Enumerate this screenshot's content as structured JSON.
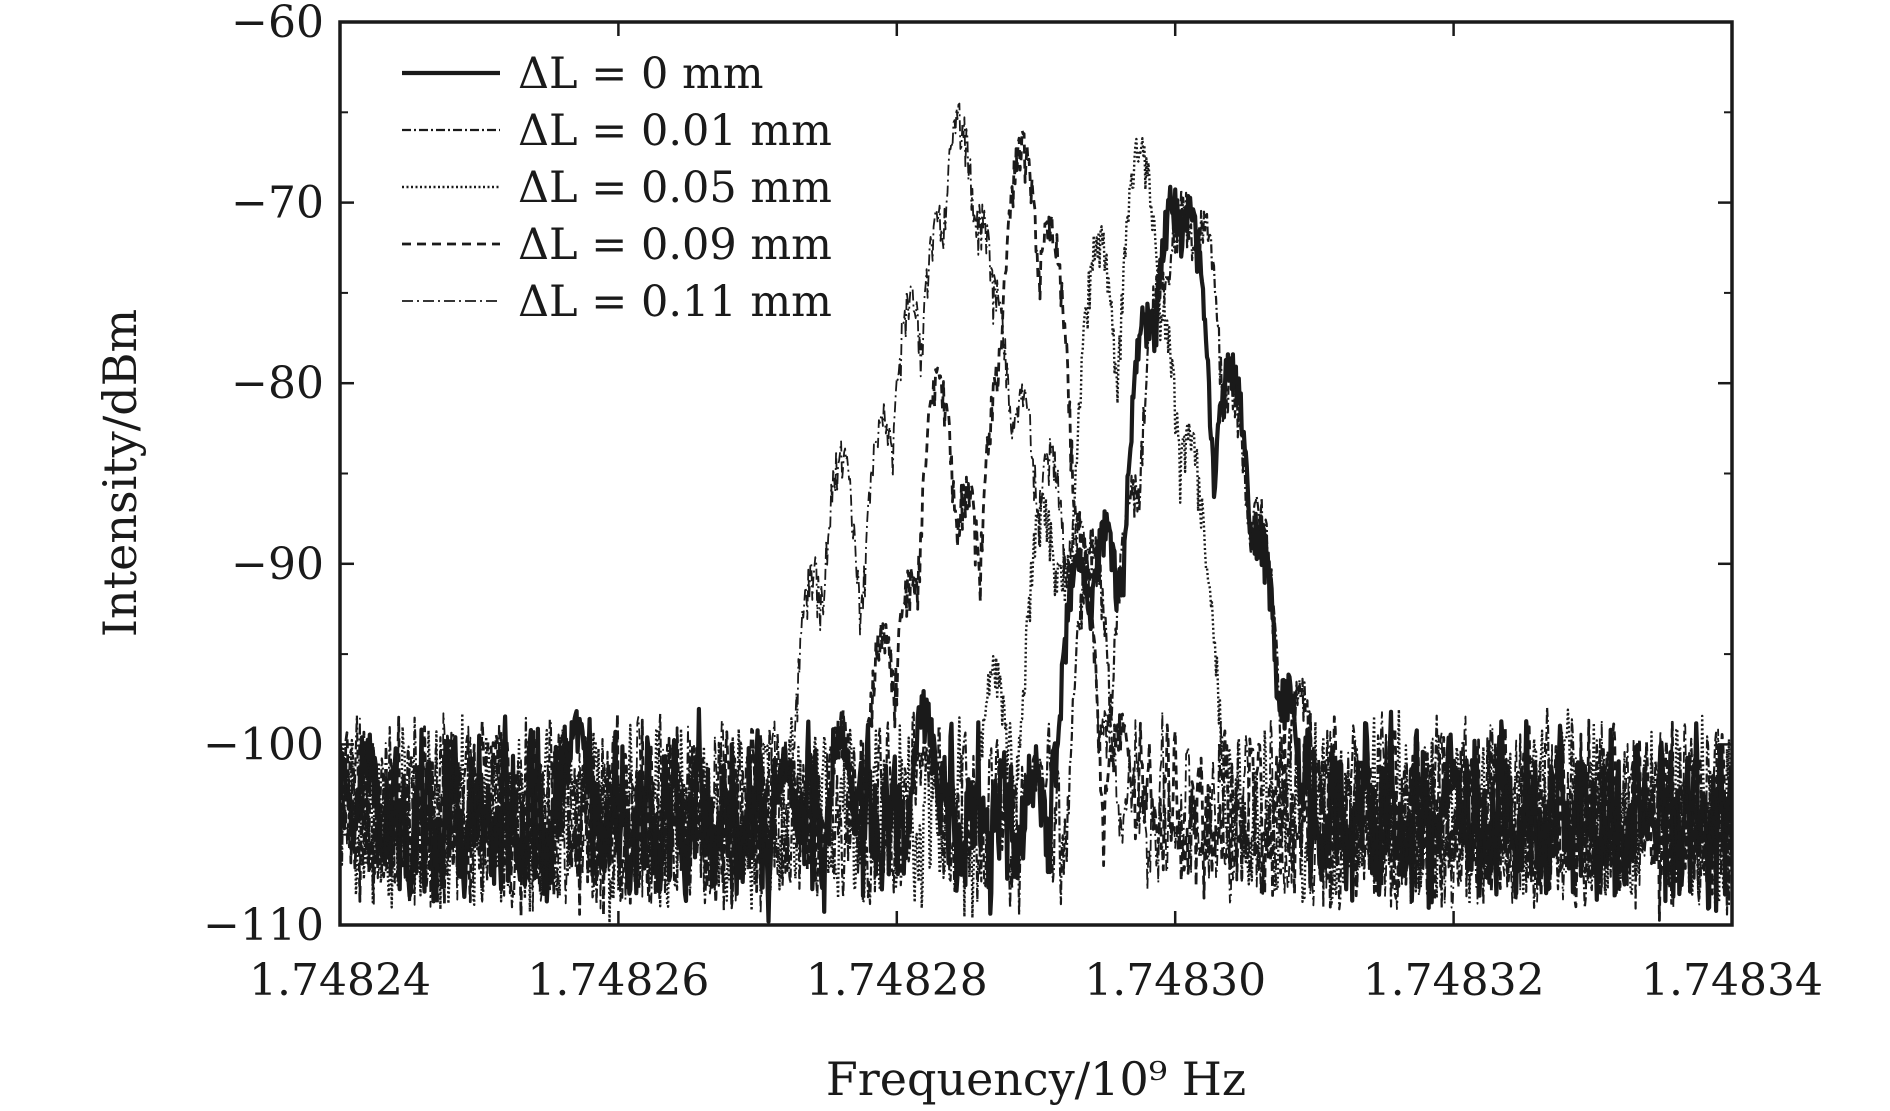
{
  "chart_data": {
    "type": "line",
    "xlabel": "Frequency/10⁹ Hz",
    "ylabel": "Intensity/dBm",
    "xlim": [
      1.74824,
      1.74834
    ],
    "ylim": [
      -110,
      -60
    ],
    "xticks": [
      1.74824,
      1.74826,
      1.74828,
      1.7483,
      1.74832,
      1.74834
    ],
    "xtick_labels": [
      "1.74824",
      "1.74826",
      "1.74828",
      "1.74830",
      "1.74832",
      "1.74834"
    ],
    "yticks": [
      -110,
      -100,
      -90,
      -80,
      -70,
      -60
    ],
    "ytick_labels": [
      "−110",
      "−100",
      "−90",
      "−80",
      "−70",
      "−60"
    ],
    "grid": false,
    "legend_position": "top-left",
    "noise_floor": [
      -110,
      -98
    ],
    "series": [
      {
        "name": "ΔL = 0 mm",
        "style": "solid-bold",
        "peaks": [
          {
            "x": 1.74824,
            "y": -100
          },
          {
            "x": 1.748242,
            "y": -99.5
          },
          {
            "x": 1.748257,
            "y": -98
          },
          {
            "x": 1.748272,
            "y": -100
          },
          {
            "x": 1.748276,
            "y": -99
          },
          {
            "x": 1.748282,
            "y": -97
          },
          {
            "x": 1.74829,
            "y": -101
          },
          {
            "x": 1.748293,
            "y": -89
          },
          {
            "x": 1.748295,
            "y": -87
          },
          {
            "x": 1.748296,
            "y": -90
          },
          {
            "x": 1.748298,
            "y": -75
          },
          {
            "x": 1.7482998,
            "y": -69
          },
          {
            "x": 1.748301,
            "y": -69.5
          },
          {
            "x": 1.748304,
            "y": -78
          },
          {
            "x": 1.748306,
            "y": -87
          },
          {
            "x": 1.748308,
            "y": -96
          },
          {
            "x": 1.74832,
            "y": -101
          },
          {
            "x": 1.748334,
            "y": -103
          }
        ]
      },
      {
        "name": "ΔL = 0.01 mm",
        "style": "dash-dot-fine",
        "peaks": [
          {
            "x": 1.748241,
            "y": -100
          },
          {
            "x": 1.748248,
            "y": -99
          },
          {
            "x": 1.748256,
            "y": -99
          },
          {
            "x": 1.74827,
            "y": -100
          },
          {
            "x": 1.748282,
            "y": -99
          },
          {
            "x": 1.74829,
            "y": -100
          },
          {
            "x": 1.748294,
            "y": -88
          },
          {
            "x": 1.748297,
            "y": -85
          },
          {
            "x": 1.748299,
            "y": -73
          },
          {
            "x": 1.7483005,
            "y": -69
          },
          {
            "x": 1.748302,
            "y": -70
          },
          {
            "x": 1.748304,
            "y": -79
          },
          {
            "x": 1.748306,
            "y": -86
          },
          {
            "x": 1.748309,
            "y": -96
          },
          {
            "x": 1.748318,
            "y": -100
          },
          {
            "x": 1.748334,
            "y": -102
          }
        ]
      },
      {
        "name": "ΔL = 0.05 mm",
        "style": "dotted",
        "peaks": [
          {
            "x": 1.74824,
            "y": -100
          },
          {
            "x": 1.748258,
            "y": -99
          },
          {
            "x": 1.748266,
            "y": -100
          },
          {
            "x": 1.748274,
            "y": -100
          },
          {
            "x": 1.748284,
            "y": -103
          },
          {
            "x": 1.748287,
            "y": -95
          },
          {
            "x": 1.7482905,
            "y": -86
          },
          {
            "x": 1.748292,
            "y": -89
          },
          {
            "x": 1.7482945,
            "y": -71
          },
          {
            "x": 1.748296,
            "y": -85
          },
          {
            "x": 1.7482975,
            "y": -66
          },
          {
            "x": 1.748299,
            "y": -75
          },
          {
            "x": 1.748301,
            "y": -82
          },
          {
            "x": 1.748302,
            "y": -90
          },
          {
            "x": 1.748304,
            "y": -106
          },
          {
            "x": 1.748314,
            "y": -104
          },
          {
            "x": 1.748328,
            "y": -99
          },
          {
            "x": 1.748334,
            "y": -104
          }
        ]
      },
      {
        "name": "ΔL = 0.09 mm",
        "style": "dashed",
        "peaks": [
          {
            "x": 1.74824,
            "y": -101
          },
          {
            "x": 1.748251,
            "y": -99
          },
          {
            "x": 1.74826,
            "y": -102
          },
          {
            "x": 1.748272,
            "y": -100
          },
          {
            "x": 1.748276,
            "y": -98
          },
          {
            "x": 1.748279,
            "y": -93
          },
          {
            "x": 1.748281,
            "y": -90
          },
          {
            "x": 1.748283,
            "y": -79
          },
          {
            "x": 1.748285,
            "y": -85
          },
          {
            "x": 1.7482875,
            "y": -78
          },
          {
            "x": 1.748289,
            "y": -66
          },
          {
            "x": 1.748291,
            "y": -70.5
          },
          {
            "x": 1.748293,
            "y": -87
          },
          {
            "x": 1.748296,
            "y": -98
          },
          {
            "x": 1.748298,
            "y": -102
          },
          {
            "x": 1.7483,
            "y": -104
          },
          {
            "x": 1.74831,
            "y": -100
          },
          {
            "x": 1.74832,
            "y": -101
          },
          {
            "x": 1.748334,
            "y": -104
          }
        ]
      },
      {
        "name": "ΔL = 0.11 mm",
        "style": "dash-dot",
        "peaks": [
          {
            "x": 1.74824,
            "y": -102
          },
          {
            "x": 1.748252,
            "y": -103
          },
          {
            "x": 1.748264,
            "y": -100
          },
          {
            "x": 1.748273,
            "y": -99
          },
          {
            "x": 1.748274,
            "y": -89.5
          },
          {
            "x": 1.748275,
            "y": -94
          },
          {
            "x": 1.748276,
            "y": -83
          },
          {
            "x": 1.7482775,
            "y": -91
          },
          {
            "x": 1.748279,
            "y": -81
          },
          {
            "x": 1.748281,
            "y": -74.5
          },
          {
            "x": 1.748283,
            "y": -70
          },
          {
            "x": 1.7482845,
            "y": -64.5
          },
          {
            "x": 1.748286,
            "y": -70
          },
          {
            "x": 1.748287,
            "y": -74
          },
          {
            "x": 1.748289,
            "y": -80
          },
          {
            "x": 1.748291,
            "y": -83
          },
          {
            "x": 1.748293,
            "y": -87
          },
          {
            "x": 1.748295,
            "y": -98
          },
          {
            "x": 1.748297,
            "y": -101
          },
          {
            "x": 1.7483,
            "y": -104
          },
          {
            "x": 1.748312,
            "y": -103
          },
          {
            "x": 1.748334,
            "y": -104
          }
        ]
      }
    ]
  }
}
